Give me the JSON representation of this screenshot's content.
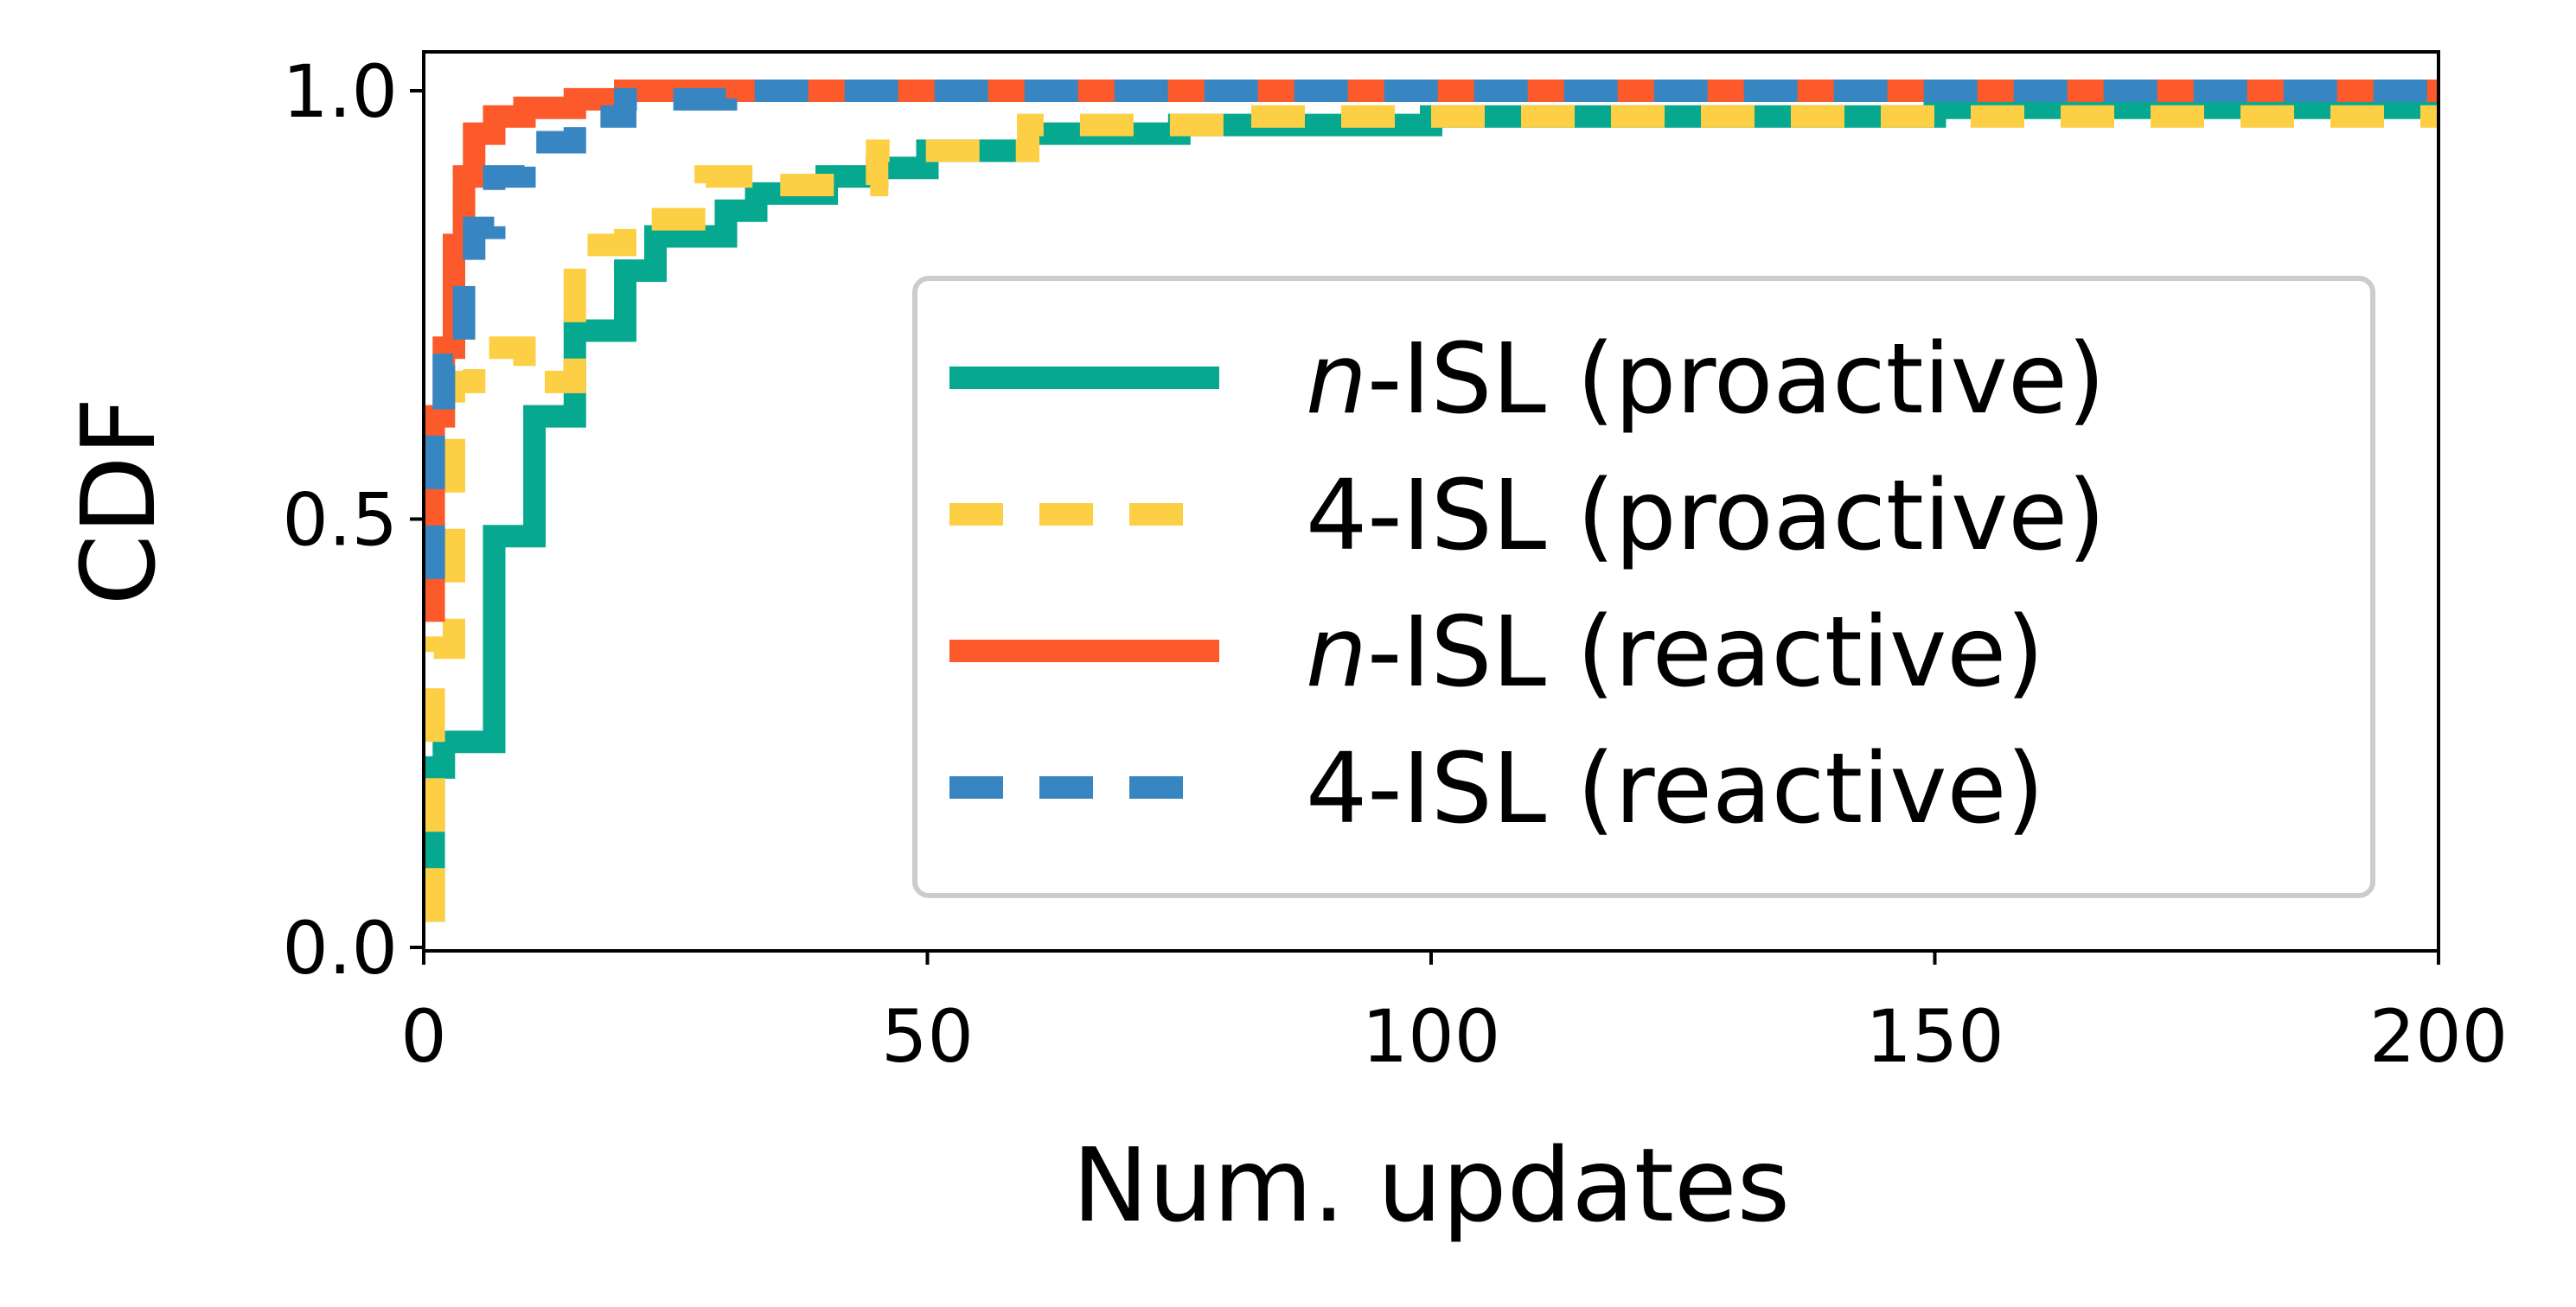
{
  "chart_data": {
    "type": "line",
    "xlabel": "Num. updates",
    "ylabel": "CDF",
    "xlim": [
      0,
      200
    ],
    "ylim": [
      0,
      1.0
    ],
    "x_ticks": [
      0,
      50,
      100,
      150,
      200
    ],
    "x_tick_labels": [
      "0",
      "50",
      "100",
      "150",
      "200"
    ],
    "y_ticks": [
      0.0,
      0.5,
      1.0
    ],
    "y_tick_labels": [
      "0.0",
      "0.5",
      "1.0"
    ],
    "grid": false,
    "legend_position": "center-right",
    "series": [
      {
        "name": "n-ISL (proactive)",
        "name_italic_part": "n",
        "name_rest": "-ISL (proactive)",
        "color": "#06a88f",
        "style": "solid",
        "points": [
          [
            1,
            0.03
          ],
          [
            1,
            0.21
          ],
          [
            2,
            0.21
          ],
          [
            2,
            0.24
          ],
          [
            7,
            0.24
          ],
          [
            7,
            0.48
          ],
          [
            11,
            0.48
          ],
          [
            11,
            0.62
          ],
          [
            15,
            0.62
          ],
          [
            15,
            0.72
          ],
          [
            20,
            0.72
          ],
          [
            20,
            0.79
          ],
          [
            23,
            0.79
          ],
          [
            23,
            0.83
          ],
          [
            30,
            0.83
          ],
          [
            30,
            0.86
          ],
          [
            33,
            0.86
          ],
          [
            33,
            0.88
          ],
          [
            40,
            0.88
          ],
          [
            40,
            0.9
          ],
          [
            45,
            0.9
          ],
          [
            45,
            0.91
          ],
          [
            50,
            0.91
          ],
          [
            50,
            0.93
          ],
          [
            60,
            0.93
          ],
          [
            60,
            0.95
          ],
          [
            75,
            0.95
          ],
          [
            75,
            0.96
          ],
          [
            100,
            0.96
          ],
          [
            100,
            0.97
          ],
          [
            150,
            0.97
          ],
          [
            150,
            0.98
          ],
          [
            200,
            0.98
          ]
        ]
      },
      {
        "name": "4-ISL (proactive)",
        "name_italic_part": "",
        "name_rest": "4-ISL (proactive)",
        "color": "#fdcf44",
        "style": "dashed",
        "points": [
          [
            1,
            0.03
          ],
          [
            1,
            0.35
          ],
          [
            3,
            0.35
          ],
          [
            3,
            0.66
          ],
          [
            5,
            0.66
          ],
          [
            5,
            0.7
          ],
          [
            10,
            0.7
          ],
          [
            10,
            0.66
          ],
          [
            15,
            0.66
          ],
          [
            15,
            0.82
          ],
          [
            20,
            0.82
          ],
          [
            20,
            0.85
          ],
          [
            28,
            0.85
          ],
          [
            28,
            0.9
          ],
          [
            35,
            0.9
          ],
          [
            35,
            0.89
          ],
          [
            45,
            0.89
          ],
          [
            45,
            0.93
          ],
          [
            60,
            0.93
          ],
          [
            60,
            0.96
          ],
          [
            80,
            0.96
          ],
          [
            80,
            0.97
          ],
          [
            200,
            0.97
          ]
        ]
      },
      {
        "name": "n-ISL (reactive)",
        "name_italic_part": "n",
        "name_rest": "-ISL (reactive)",
        "color": "#fc5a2b",
        "style": "solid",
        "points": [
          [
            1,
            0.38
          ],
          [
            1,
            0.62
          ],
          [
            2,
            0.62
          ],
          [
            2,
            0.7
          ],
          [
            3,
            0.7
          ],
          [
            3,
            0.82
          ],
          [
            4,
            0.82
          ],
          [
            4,
            0.9
          ],
          [
            5,
            0.9
          ],
          [
            5,
            0.95
          ],
          [
            7,
            0.95
          ],
          [
            7,
            0.97
          ],
          [
            10,
            0.97
          ],
          [
            10,
            0.98
          ],
          [
            15,
            0.98
          ],
          [
            15,
            0.99
          ],
          [
            20,
            0.99
          ],
          [
            20,
            1.0
          ],
          [
            200,
            1.0
          ]
        ]
      },
      {
        "name": "4-ISL (reactive)",
        "name_italic_part": "",
        "name_rest": "4-ISL (reactive)",
        "color": "#3886c1",
        "style": "dashed",
        "points": [
          [
            1,
            0.43
          ],
          [
            1,
            0.62
          ],
          [
            2,
            0.62
          ],
          [
            2,
            0.68
          ],
          [
            4,
            0.68
          ],
          [
            4,
            0.78
          ],
          [
            5,
            0.78
          ],
          [
            5,
            0.84
          ],
          [
            7,
            0.84
          ],
          [
            7,
            0.9
          ],
          [
            10,
            0.9
          ],
          [
            10,
            0.94
          ],
          [
            15,
            0.94
          ],
          [
            15,
            0.97
          ],
          [
            20,
            0.97
          ],
          [
            20,
            0.99
          ],
          [
            30,
            0.99
          ],
          [
            30,
            1.0
          ],
          [
            200,
            1.0
          ]
        ]
      }
    ]
  }
}
